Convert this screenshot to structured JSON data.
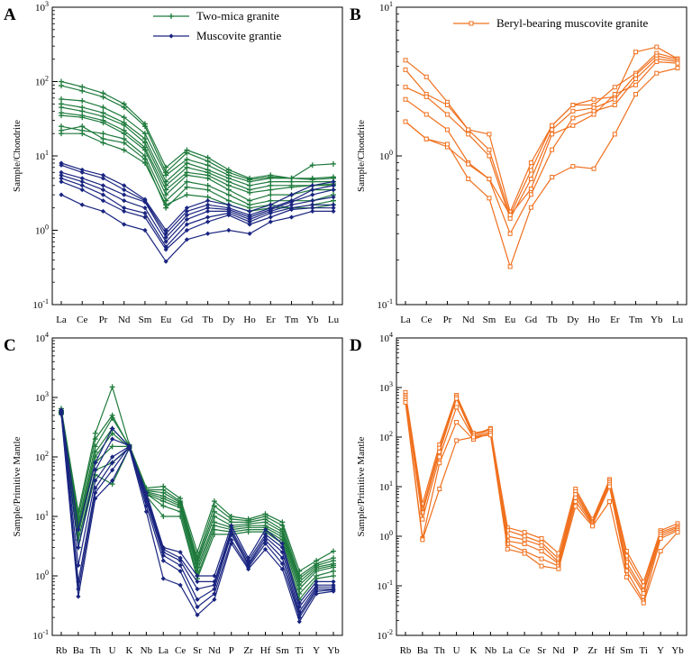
{
  "colors": {
    "green": "#1e7a3c",
    "navy": "#1a2580",
    "orange": "#f0701e"
  },
  "chart_data": [
    {
      "id": "A",
      "letter": "A",
      "type": "line",
      "log": true,
      "ylabel": "Sample/Chondrite",
      "ylim": [
        0.1,
        1000
      ],
      "categories": [
        "La",
        "Ce",
        "Pr",
        "Nd",
        "Sm",
        "Eu",
        "Gd",
        "Tb",
        "Dy",
        "Ho",
        "Er",
        "Tm",
        "Yb",
        "Lu"
      ],
      "legend": [
        {
          "label": "Two-mica granite",
          "color": "#1e7a3c",
          "marker": "plus"
        },
        {
          "label": "Muscovite grantie",
          "color": "#1a2580",
          "marker": "diamond"
        }
      ],
      "groups": [
        {
          "name": "Two-mica granite",
          "color": "#1e7a3c",
          "marker": "plus",
          "series": [
            [
              100,
              85,
              70,
              50,
              27,
              7.0,
              12,
              9.5,
              6.5,
              5.0,
              5.5,
              5.0,
              5.0,
              5.2
            ],
            [
              88,
              75,
              62,
              45,
              25,
              6.0,
              11,
              8.5,
              6.0,
              4.8,
              5.2,
              5.0,
              4.8,
              5.0
            ],
            [
              58,
              55,
              45,
              33,
              20,
              5.5,
              9.0,
              7.5,
              5.5,
              4.5,
              5.0,
              5.0,
              7.5,
              7.8
            ],
            [
              50,
              45,
              38,
              28,
              17,
              4.5,
              8.0,
              6.5,
              5.0,
              4.0,
              4.5,
              4.5,
              4.5,
              4.5
            ],
            [
              45,
              40,
              34,
              26,
              15,
              4.0,
              7.0,
              6.0,
              4.5,
              3.5,
              4.0,
              4.0,
              4.0,
              4.2
            ],
            [
              38,
              35,
              30,
              22,
              13,
              3.5,
              6.0,
              5.5,
              4.0,
              3.2,
              3.5,
              3.8,
              4.0,
              4.0
            ],
            [
              35,
              33,
              28,
              20,
              12,
              3.0,
              5.5,
              5.0,
              3.5,
              2.5,
              3.0,
              3.0,
              3.5,
              3.5
            ],
            [
              25,
              22,
              20,
              17,
              10,
              2.5,
              4.5,
              4.0,
              3.0,
              2.2,
              2.5,
              2.5,
              2.5,
              3.0
            ],
            [
              22,
              25,
              17,
              15,
              9,
              2.0,
              3.8,
              3.5,
              2.5,
              2.0,
              2.2,
              2.0,
              2.2,
              2.5
            ],
            [
              20,
              20,
              15,
              12,
              8,
              2.2,
              3.0,
              2.8,
              2.2,
              1.8,
              2.0,
              2.0,
              2.0,
              2.2
            ]
          ]
        },
        {
          "name": "Muscovite grantie",
          "color": "#1a2580",
          "marker": "diamond",
          "series": [
            [
              8.0,
              6.5,
              5.5,
              4.0,
              2.6,
              1.0,
              2.0,
              2.5,
              2.2,
              1.8,
              2.2,
              3.0,
              4.0,
              4.5
            ],
            [
              7.5,
              6.0,
              5.0,
              3.5,
              2.5,
              0.9,
              1.8,
              2.2,
              2.0,
              1.6,
              2.0,
              2.5,
              3.5,
              4.0
            ],
            [
              6.0,
              5.0,
              4.0,
              3.0,
              2.4,
              0.8,
              1.6,
              2.0,
              1.9,
              1.5,
              1.9,
              2.4,
              3.0,
              3.5
            ],
            [
              5.5,
              4.5,
              3.5,
              2.5,
              2.0,
              0.7,
              1.4,
              1.8,
              1.8,
              1.4,
              1.8,
              2.2,
              2.5,
              2.8
            ],
            [
              5.0,
              4.0,
              3.0,
              2.0,
              1.7,
              0.6,
              1.2,
              1.5,
              1.7,
              1.3,
              1.7,
              2.0,
              2.2,
              2.2
            ],
            [
              4.5,
              3.5,
              2.5,
              1.8,
              1.5,
              0.55,
              1.0,
              1.3,
              1.6,
              1.2,
              1.5,
              1.9,
              2.0,
              2.0
            ],
            [
              3.0,
              2.2,
              1.8,
              1.2,
              1.0,
              0.38,
              0.75,
              0.9,
              1.0,
              0.9,
              1.3,
              1.5,
              1.8,
              1.8
            ]
          ]
        }
      ]
    },
    {
      "id": "B",
      "letter": "B",
      "type": "line",
      "log": true,
      "ylabel": "Sample/Chondrite",
      "ylim": [
        0.1,
        10
      ],
      "categories": [
        "La",
        "Ce",
        "Pr",
        "Nd",
        "Sm",
        "Eu",
        "Gd",
        "Tb",
        "Dy",
        "Ho",
        "Er",
        "Tm",
        "Yb",
        "Lu"
      ],
      "legend": [
        {
          "label": "Beryl-bearing muscovite granite",
          "color": "#f0701e",
          "marker": "square"
        }
      ],
      "groups": [
        {
          "name": "Beryl-bearing muscovite granite",
          "color": "#f0701e",
          "marker": "square",
          "series": [
            [
              4.4,
              3.4,
              2.3,
              1.5,
              1.4,
              0.42,
              0.9,
              1.6,
              2.2,
              2.4,
              2.5,
              5.0,
              5.4,
              4.5
            ],
            [
              3.8,
              2.6,
              2.2,
              1.5,
              1.1,
              0.4,
              0.8,
              1.6,
              2.2,
              2.2,
              2.9,
              3.6,
              4.9,
              4.5
            ],
            [
              2.9,
              2.5,
              1.9,
              1.4,
              1.0,
              0.38,
              0.7,
              1.5,
              2.0,
              2.1,
              2.4,
              3.5,
              4.7,
              4.4
            ],
            [
              2.4,
              1.9,
              1.5,
              0.9,
              0.7,
              0.3,
              0.55,
              1.1,
              1.8,
              2.0,
              2.2,
              3.3,
              4.5,
              4.3
            ],
            [
              1.7,
              1.3,
              1.15,
              0.88,
              0.7,
              0.4,
              0.6,
              1.4,
              1.6,
              1.9,
              2.6,
              3.0,
              4.3,
              4.2
            ],
            [
              1.7,
              1.3,
              1.2,
              0.7,
              0.52,
              0.18,
              0.45,
              0.72,
              0.85,
              0.82,
              1.4,
              2.6,
              3.6,
              3.9
            ]
          ]
        }
      ]
    },
    {
      "id": "C",
      "letter": "C",
      "type": "line",
      "log": true,
      "ylabel": "Sample/Primitive Mantle",
      "ylim": [
        0.1,
        10000
      ],
      "categories": [
        "Rb",
        "Ba",
        "Th",
        "U",
        "K",
        "Nb",
        "La",
        "Ce",
        "Sr",
        "Nd",
        "P",
        "Zr",
        "Hf",
        "Sm",
        "Ti",
        "Y",
        "Yb"
      ],
      "legend": [],
      "groups": [
        {
          "name": "Two-mica granite",
          "color": "#1e7a3c",
          "marker": "plus",
          "series": [
            [
              650,
              12,
              250,
              1500,
              160,
              30,
              32,
              20,
              2.5,
              18,
              10,
              9,
              11,
              8,
              1.2,
              1.8,
              2.6
            ],
            [
              600,
              10,
              200,
              500,
              150,
              28,
              28,
              18,
              2.0,
              15,
              9,
              8.5,
              10,
              7,
              1.0,
              1.6,
              2.0
            ],
            [
              580,
              8,
              150,
              450,
              155,
              27,
              25,
              17,
              1.8,
              12,
              8,
              8,
              9,
              6,
              0.9,
              1.5,
              1.8
            ],
            [
              560,
              7,
              120,
              300,
              150,
              26,
              22,
              16,
              1.6,
              10,
              7,
              7.5,
              8,
              5.5,
              0.8,
              1.4,
              1.6
            ],
            [
              550,
              6,
              100,
              250,
              145,
              25,
              20,
              15,
              1.4,
              8,
              6.5,
              7,
              7,
              5,
              0.7,
              1.3,
              1.5
            ],
            [
              540,
              5,
              80,
              150,
              150,
              24,
              18,
              14,
              1.2,
              7,
              6,
              6.5,
              6.5,
              4.5,
              0.6,
              1.2,
              1.4
            ],
            [
              530,
              4,
              60,
              80,
              140,
              24,
              15,
              12,
              1.0,
              6,
              5.5,
              6,
              6,
              4,
              0.5,
              1.0,
              1.2
            ],
            [
              520,
              3,
              50,
              35,
              140,
              22,
              10,
              10,
              0.9,
              5,
              5,
              5.5,
              5.5,
              3.5,
              0.4,
              0.9,
              1.0
            ]
          ]
        },
        {
          "name": "Muscovite grantie",
          "color": "#1a2580",
          "marker": "diamond",
          "series": [
            [
              620,
              6,
              80,
              300,
              150,
              25,
              3.0,
              2.5,
              1.0,
              1.0,
              7,
              2.0,
              6,
              3.5,
              0.35,
              0.8,
              0.8
            ],
            [
              600,
              3,
              60,
              200,
              155,
              22,
              2.8,
              2.0,
              0.8,
              0.8,
              6,
              1.8,
              5,
              3.0,
              0.3,
              0.7,
              0.7
            ],
            [
              580,
              1.5,
              40,
              100,
              150,
              20,
              2.5,
              1.8,
              0.6,
              0.7,
              5.5,
              1.6,
              4.5,
              2.5,
              0.25,
              0.65,
              0.65
            ],
            [
              560,
              0.8,
              30,
              80,
              145,
              18,
              2.2,
              1.5,
              0.4,
              0.6,
              5,
              1.5,
              4,
              2.0,
              0.22,
              0.6,
              0.6
            ],
            [
              540,
              0.6,
              25,
              60,
              150,
              15,
              1.8,
              1.2,
              0.3,
              0.5,
              4,
              1.4,
              3.5,
              1.6,
              0.2,
              0.55,
              0.58
            ],
            [
              520,
              0.45,
              20,
              40,
              140,
              12,
              0.9,
              0.7,
              0.22,
              0.4,
              3.5,
              1.3,
              2.8,
              1.3,
              0.17,
              0.5,
              0.55
            ]
          ]
        }
      ]
    },
    {
      "id": "D",
      "letter": "D",
      "type": "line",
      "log": true,
      "ylabel": "Sample/Primitive Mantle",
      "ylim": [
        0.01,
        10000
      ],
      "categories": [
        "Rb",
        "Ba",
        "Th",
        "U",
        "K",
        "Nb",
        "La",
        "Ce",
        "Sr",
        "Nd",
        "P",
        "Zr",
        "Hf",
        "Sm",
        "Ti",
        "Y",
        "Yb"
      ],
      "legend": [],
      "groups": [
        {
          "name": "Beryl-bearing muscovite granite",
          "color": "#f0701e",
          "marker": "square",
          "series": [
            [
              800,
              4.5,
              70,
              700,
              120,
              140,
              1.5,
              1.2,
              0.9,
              0.45,
              9,
              2.2,
              14,
              0.5,
              0.12,
              1.3,
              1.8
            ],
            [
              700,
              3.5,
              60,
              650,
              110,
              150,
              1.3,
              1.0,
              0.75,
              0.35,
              8,
              2.0,
              13,
              0.4,
              0.1,
              1.2,
              1.6
            ],
            [
              650,
              3.0,
              50,
              600,
              100,
              145,
              1.0,
              0.85,
              0.65,
              0.3,
              7,
              1.9,
              12,
              0.3,
              0.08,
              1.1,
              1.5
            ],
            [
              600,
              2.2,
              40,
              400,
              95,
              130,
              0.8,
              0.7,
              0.5,
              0.28,
              6,
              1.8,
              11,
              0.25,
              0.07,
              1.0,
              1.4
            ],
            [
              550,
              0.9,
              30,
              200,
              90,
              120,
              0.7,
              0.5,
              0.35,
              0.25,
              5,
              1.7,
              10,
              0.2,
              0.05,
              0.9,
              1.3
            ],
            [
              500,
              0.85,
              9,
              85,
              100,
              110,
              0.55,
              0.45,
              0.25,
              0.22,
              4,
              1.6,
              5,
              0.15,
              0.045,
              0.5,
              1.2
            ]
          ]
        }
      ]
    }
  ]
}
